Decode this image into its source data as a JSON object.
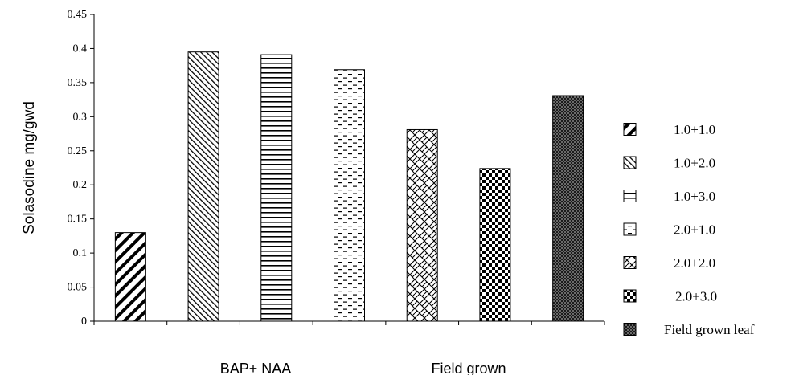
{
  "chart_data": {
    "type": "bar",
    "title": "",
    "xlabel": "",
    "ylabel": "Solasodine mg/gwd",
    "ylim": [
      0,
      0.45
    ],
    "yticks": [
      "0",
      "0.05",
      "0.1",
      "0.15",
      "0.2",
      "0.25",
      "0.3",
      "0.35",
      "0.4",
      "0.45"
    ],
    "group_labels": [
      "BAP+ NAA",
      "Field grown"
    ],
    "categories": [
      "1.0+1.0",
      "1.0+2.0",
      "1.0+3.0",
      "2.0+1.0",
      "2.0+2.0",
      "2.0+3.0",
      "Field grown leaf"
    ],
    "values": [
      0.13,
      0.395,
      0.391,
      0.369,
      0.281,
      0.224,
      0.331
    ],
    "patterns": [
      "diag-thick",
      "diag-thin",
      "horizontal",
      "dashed",
      "wave",
      "checker",
      "dense"
    ],
    "legend_position": "right",
    "grid": false,
    "colors": {
      "ink": "#000000",
      "background": "#ffffff"
    }
  }
}
